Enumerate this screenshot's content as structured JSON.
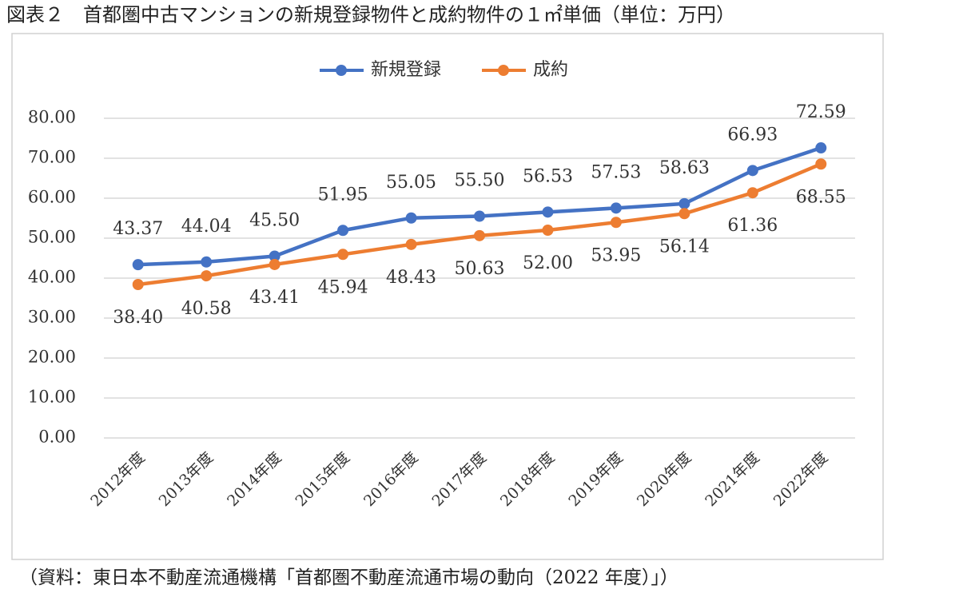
{
  "chart_data": {
    "type": "line",
    "title": "図表２　首都圏中古マンションの新規登録物件と成約物件の１㎡単価（単位：万円）",
    "source": "（資料：東日本不動産流通機構「首都圏不動産流通市場の動向（2022 年度）」）",
    "categories": [
      "2012年度",
      "2013年度",
      "2014年度",
      "2015年度",
      "2016年度",
      "2017年度",
      "2018年度",
      "2019年度",
      "2020年度",
      "2021年度",
      "2022年度"
    ],
    "series": [
      {
        "name": "新規登録",
        "color": "#4472c4",
        "values": [
          43.37,
          44.04,
          45.5,
          51.95,
          55.05,
          55.5,
          56.53,
          57.53,
          58.63,
          66.93,
          72.59
        ],
        "value_labels": [
          "43.37",
          "44.04",
          "45.50",
          "51.95",
          "55.05",
          "55.50",
          "56.53",
          "57.53",
          "58.63",
          "66.93",
          "72.59"
        ]
      },
      {
        "name": "成約",
        "color": "#ed7d31",
        "values": [
          38.4,
          40.58,
          43.41,
          45.94,
          48.43,
          50.63,
          52,
          53.95,
          56.14,
          61.36,
          68.55
        ],
        "value_labels": [
          "38.40",
          "40.58",
          "43.41",
          "45.94",
          "48.43",
          "50.63",
          "52.00",
          "53.95",
          "56.14",
          "61.36",
          "68.55"
        ]
      }
    ],
    "ylim": [
      0,
      80
    ],
    "yticks": [
      {
        "value": 0,
        "label": "0.00"
      },
      {
        "value": 10,
        "label": "10.00"
      },
      {
        "value": 20,
        "label": "20.00"
      },
      {
        "value": 30,
        "label": "30.00"
      },
      {
        "value": 40,
        "label": "40.00"
      },
      {
        "value": 50,
        "label": "50.00"
      },
      {
        "value": 60,
        "label": "60.00"
      },
      {
        "value": 70,
        "label": "70.00"
      },
      {
        "value": 80,
        "label": "80.00"
      }
    ],
    "grid": true,
    "legend": "top"
  }
}
